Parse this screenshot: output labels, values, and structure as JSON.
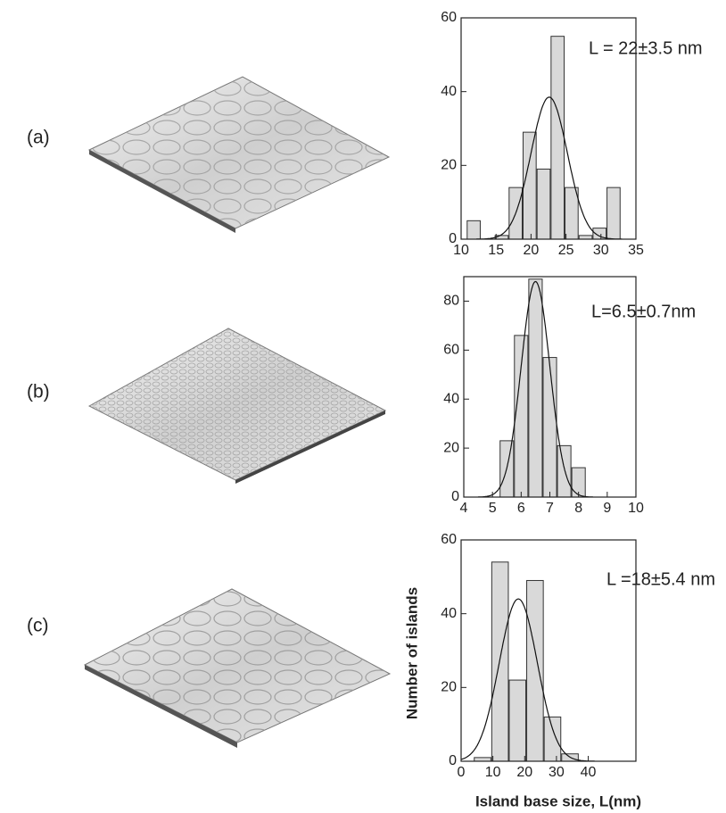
{
  "panel_labels": [
    "(a)",
    "(b)",
    "(c)"
  ],
  "chart_data": [
    {
      "type": "histogram",
      "annotation": "L = 22±3.5 nm",
      "color": "#d9d9d9",
      "bins": [
        10.8,
        12.8,
        14.8,
        16.8,
        18.8,
        20.8,
        22.8,
        24.8,
        26.8,
        28.8,
        30.8,
        32.8
      ],
      "values": [
        5,
        0,
        1,
        14,
        29,
        19,
        55,
        14,
        1,
        3,
        14
      ],
      "fit": {
        "center": 22.6,
        "sigma": 2.6,
        "peak": 38.5
      },
      "xlim": [
        10,
        35
      ],
      "xticks": [
        10,
        15,
        20,
        25,
        30,
        35
      ],
      "ylim": [
        0,
        60
      ],
      "yticks": [
        0,
        20,
        40,
        60
      ]
    },
    {
      "type": "histogram",
      "annotation": "L=6.5±0.7nm",
      "color": "#d9d9d9",
      "bins": [
        5.25,
        5.75,
        6.25,
        6.75,
        7.25,
        7.75,
        8.25
      ],
      "values": [
        23,
        66,
        89,
        57,
        21,
        12
      ],
      "fit": {
        "center": 6.5,
        "sigma": 0.5,
        "peak": 88
      },
      "xlim": [
        4,
        10
      ],
      "xticks": [
        4,
        5,
        6,
        7,
        8,
        9,
        10
      ],
      "ylim": [
        0,
        90
      ],
      "yticks": [
        0,
        20,
        40,
        60,
        80
      ]
    },
    {
      "type": "histogram",
      "annotation": "L =18±5.4 nm",
      "color": "#d9d9d9",
      "bins": [
        4,
        9.5,
        15,
        20.5,
        26,
        31.5,
        37
      ],
      "values": [
        1,
        54,
        22,
        49,
        12,
        2
      ],
      "fit": {
        "center": 18,
        "sigma": 6,
        "peak": 44
      },
      "xlim": [
        0,
        55
      ],
      "xticks": [
        0,
        10,
        20,
        30,
        40
      ],
      "ylim": [
        0,
        60
      ],
      "yticks": [
        0,
        20,
        40,
        60
      ],
      "y_label": "Number of  islands",
      "x_label": "Island base size, L(nm)"
    }
  ]
}
